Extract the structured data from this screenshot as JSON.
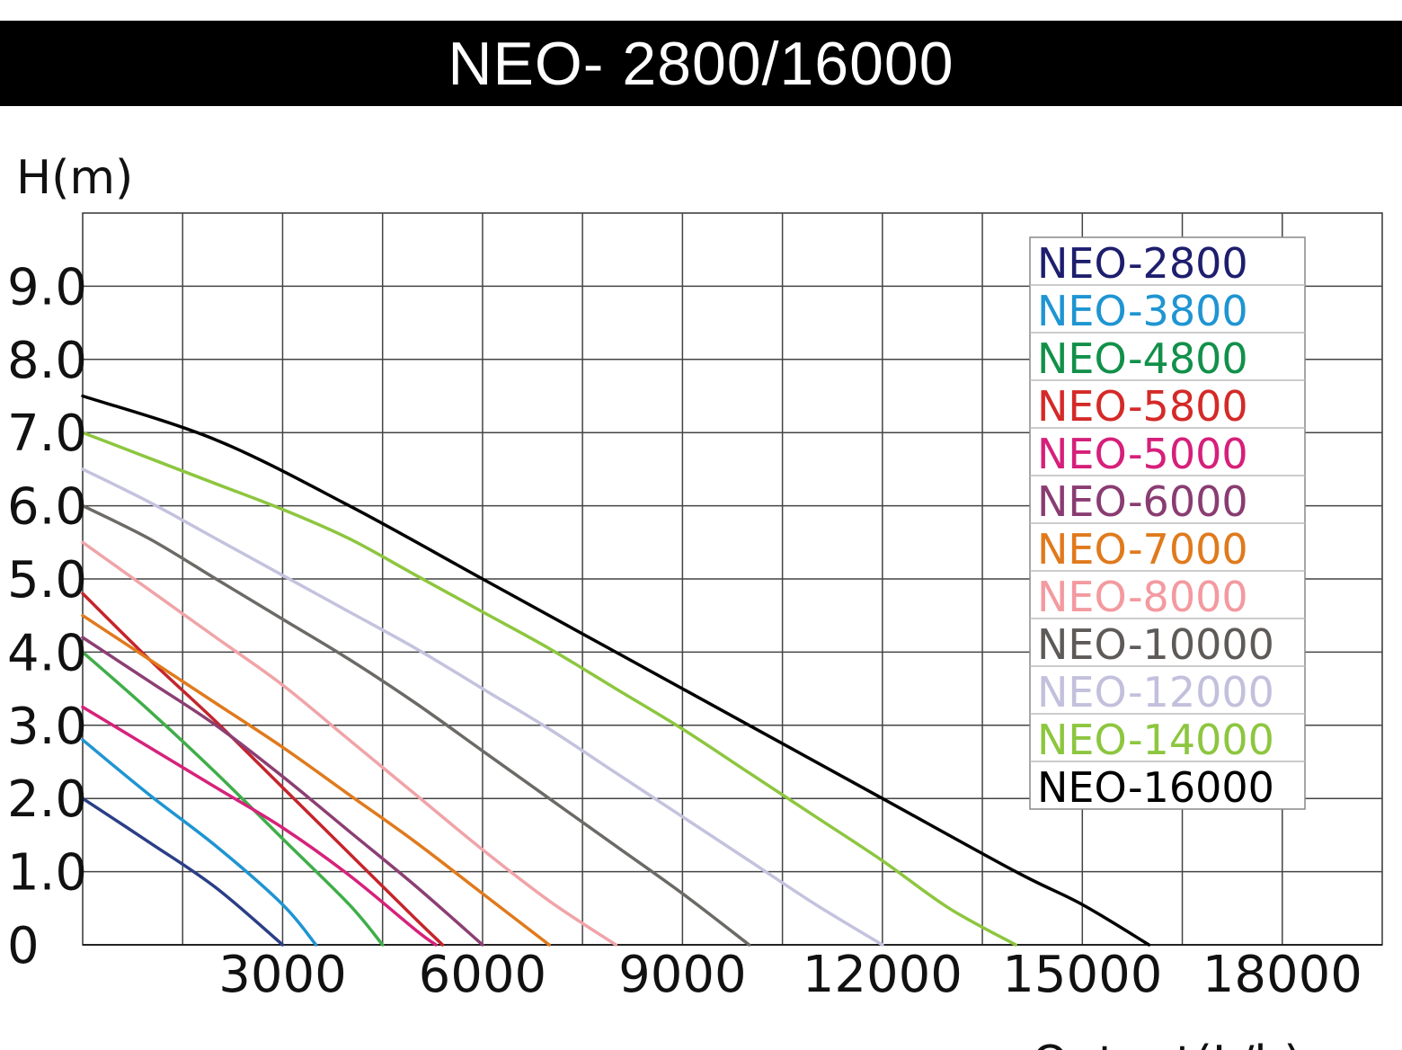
{
  "title": "NEO- 2800/16000",
  "chart_data": {
    "type": "line",
    "title": "NEO- 2800/16000",
    "xlabel": "Output(L/h)",
    "ylabel": "H(m)",
    "xlim": [
      0,
      19500
    ],
    "ylim": [
      0,
      10
    ],
    "x_ticks": [
      {
        "value": 3000,
        "label": "3000"
      },
      {
        "value": 6000,
        "label": "6000"
      },
      {
        "value": 9000,
        "label": "9000"
      },
      {
        "value": 12000,
        "label": "12000"
      },
      {
        "value": 15000,
        "label": "15000"
      },
      {
        "value": 18000,
        "label": "18000"
      }
    ],
    "y_ticks": [
      {
        "value": 0,
        "label": "0"
      },
      {
        "value": 1,
        "label": "1.0"
      },
      {
        "value": 2,
        "label": "2.0"
      },
      {
        "value": 3,
        "label": "3.0"
      },
      {
        "value": 4,
        "label": "4.0"
      },
      {
        "value": 5,
        "label": "5.0"
      },
      {
        "value": 6,
        "label": "6.0"
      },
      {
        "value": 7,
        "label": "7.0"
      },
      {
        "value": 8,
        "label": "8.0"
      },
      {
        "value": 9,
        "label": "9.0"
      }
    ],
    "grid": true,
    "legend_position": "top-right",
    "series": [
      {
        "name": "NEO-2800",
        "color": "#2b3f87",
        "legend_color": "#1e1e6e",
        "points": [
          [
            0,
            2.0
          ],
          [
            1000,
            1.4
          ],
          [
            2000,
            0.78
          ],
          [
            3000,
            0
          ]
        ]
      },
      {
        "name": "NEO-3800",
        "color": "#1f95d2",
        "legend_color": "#1f95d2",
        "points": [
          [
            0,
            2.8
          ],
          [
            1000,
            2.05
          ],
          [
            2000,
            1.35
          ],
          [
            3000,
            0.55
          ],
          [
            3500,
            0
          ]
        ]
      },
      {
        "name": "NEO-4800",
        "color": "#3fae49",
        "legend_color": "#12904a",
        "points": [
          [
            0,
            4.0
          ],
          [
            1000,
            3.2
          ],
          [
            2000,
            2.35
          ],
          [
            3000,
            1.45
          ],
          [
            4000,
            0.55
          ],
          [
            4500,
            0
          ]
        ]
      },
      {
        "name": "NEO-5800",
        "color": "#c4252c",
        "legend_color": "#d42a28",
        "points": [
          [
            0,
            4.8
          ],
          [
            1000,
            3.9
          ],
          [
            2000,
            3.05
          ],
          [
            3000,
            2.15
          ],
          [
            4000,
            1.25
          ],
          [
            5000,
            0.35
          ],
          [
            5400,
            0
          ]
        ]
      },
      {
        "name": "NEO-5000",
        "color": "#d6227a",
        "legend_color": "#d61f7a",
        "points": [
          [
            0,
            3.25
          ],
          [
            1000,
            2.7
          ],
          [
            2000,
            2.15
          ],
          [
            3000,
            1.6
          ],
          [
            4000,
            0.95
          ],
          [
            5000,
            0.2
          ],
          [
            5300,
            0
          ]
        ]
      },
      {
        "name": "NEO-6000",
        "color": "#8c3f73",
        "legend_color": "#8a3c72",
        "points": [
          [
            0,
            4.2
          ],
          [
            1000,
            3.6
          ],
          [
            2000,
            3.0
          ],
          [
            3000,
            2.3
          ],
          [
            4000,
            1.55
          ],
          [
            5000,
            0.8
          ],
          [
            6000,
            0
          ]
        ]
      },
      {
        "name": "NEO-7000",
        "color": "#e07a1d",
        "legend_color": "#e07a1d",
        "points": [
          [
            0,
            4.5
          ],
          [
            1000,
            3.9
          ],
          [
            2000,
            3.3
          ],
          [
            3000,
            2.7
          ],
          [
            4000,
            2.05
          ],
          [
            5000,
            1.4
          ],
          [
            6000,
            0.7
          ],
          [
            7000,
            0
          ]
        ]
      },
      {
        "name": "NEO-8000",
        "color": "#f0a4a8",
        "legend_color": "#f39aa0",
        "points": [
          [
            0,
            5.5
          ],
          [
            1000,
            4.85
          ],
          [
            2000,
            4.2
          ],
          [
            3000,
            3.55
          ],
          [
            4000,
            2.8
          ],
          [
            5000,
            2.05
          ],
          [
            6000,
            1.3
          ],
          [
            7000,
            0.6
          ],
          [
            8000,
            0
          ]
        ]
      },
      {
        "name": "NEO-10000",
        "color": "#6c6a66",
        "legend_color": "#5e5a58",
        "points": [
          [
            0,
            6.0
          ],
          [
            1000,
            5.55
          ],
          [
            2000,
            5.0
          ],
          [
            3000,
            4.45
          ],
          [
            4000,
            3.9
          ],
          [
            5000,
            3.3
          ],
          [
            6000,
            2.65
          ],
          [
            7000,
            2.0
          ],
          [
            8000,
            1.35
          ],
          [
            9000,
            0.7
          ],
          [
            10000,
            0
          ]
        ]
      },
      {
        "name": "NEO-12000",
        "color": "#c4c3de",
        "legend_color": "#c2c0dc",
        "points": [
          [
            0,
            6.5
          ],
          [
            1000,
            6.05
          ],
          [
            2000,
            5.55
          ],
          [
            3000,
            5.05
          ],
          [
            4000,
            4.55
          ],
          [
            5000,
            4.05
          ],
          [
            6000,
            3.5
          ],
          [
            7000,
            2.95
          ],
          [
            8000,
            2.35
          ],
          [
            9000,
            1.75
          ],
          [
            10000,
            1.15
          ],
          [
            11000,
            0.55
          ],
          [
            12000,
            0
          ]
        ]
      },
      {
        "name": "NEO-14000",
        "color": "#8dc63f",
        "legend_color": "#8dc63f",
        "points": [
          [
            0,
            7.0
          ],
          [
            1000,
            6.65
          ],
          [
            2000,
            6.3
          ],
          [
            3000,
            5.95
          ],
          [
            4000,
            5.55
          ],
          [
            5000,
            5.05
          ],
          [
            6000,
            4.55
          ],
          [
            7000,
            4.05
          ],
          [
            8000,
            3.5
          ],
          [
            9000,
            2.95
          ],
          [
            10000,
            2.35
          ],
          [
            11000,
            1.75
          ],
          [
            12000,
            1.15
          ],
          [
            13000,
            0.5
          ],
          [
            14000,
            0
          ]
        ]
      },
      {
        "name": "NEO-16000",
        "color": "#000000",
        "legend_color": "#000000",
        "points": [
          [
            0,
            7.5
          ],
          [
            2000,
            6.9
          ],
          [
            4000,
            6.0
          ],
          [
            6000,
            5.0
          ],
          [
            8000,
            4.0
          ],
          [
            10000,
            3.0
          ],
          [
            12000,
            2.0
          ],
          [
            14000,
            1.0
          ],
          [
            15000,
            0.55
          ],
          [
            16000,
            0
          ]
        ]
      }
    ]
  }
}
